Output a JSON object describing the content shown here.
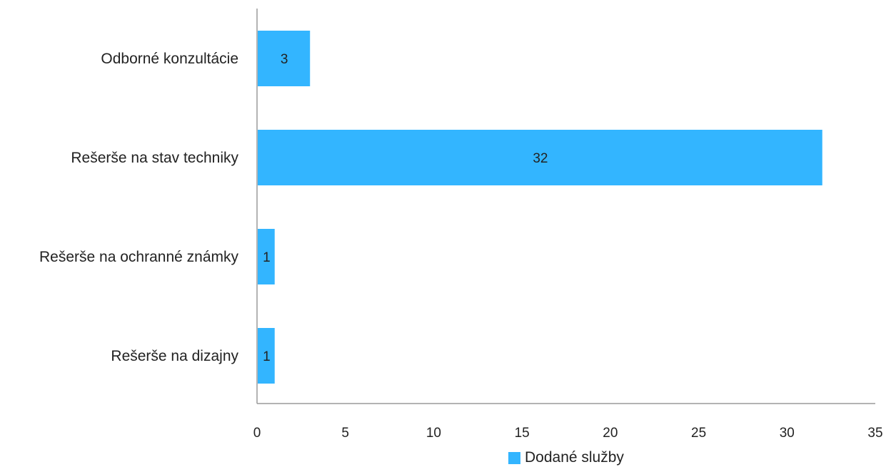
{
  "chart_data": {
    "type": "bar",
    "orientation": "horizontal",
    "categories": [
      "Odborné konzultácie",
      "Rešerše na stav techniky",
      "Rešerše na ochranné známky",
      "Rešerše na dizajny"
    ],
    "series": [
      {
        "name": "Dodané služby",
        "values": [
          3,
          32,
          1,
          1
        ],
        "color": "#33b5ff"
      }
    ],
    "data_labels": [
      "3",
      "32",
      "1",
      "1"
    ],
    "xlim": [
      0,
      35
    ],
    "x_ticks": [
      0,
      5,
      10,
      15,
      20,
      25,
      30,
      35
    ],
    "grid": false,
    "legend_position": "bottom"
  },
  "legend": {
    "label": "Dodané služby",
    "color": "#33b5ff"
  }
}
